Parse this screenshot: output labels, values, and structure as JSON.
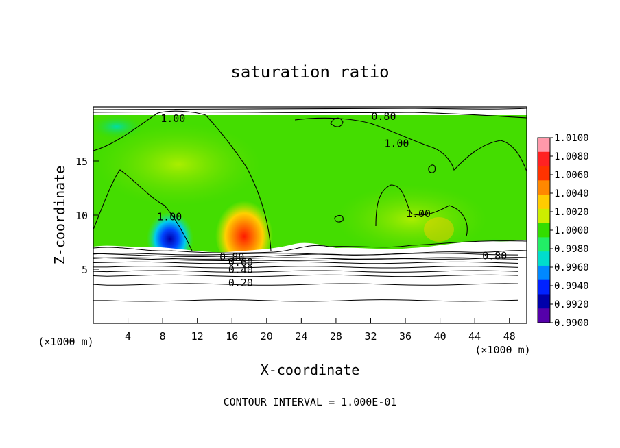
{
  "chart_data": {
    "type": "heatmap",
    "title": "saturation ratio",
    "xlabel": "X-coordinate",
    "ylabel": "Z-coordinate",
    "x_units_left": "(×1000 m)",
    "x_units_right": "(×1000 m)",
    "xlim": [
      0,
      50
    ],
    "ylim": [
      0,
      20
    ],
    "xticks": [
      4,
      8,
      12,
      16,
      20,
      24,
      28,
      32,
      36,
      40,
      44,
      48
    ],
    "yticks": [
      5,
      10,
      15
    ],
    "footer": "CONTOUR INTERVAL = 1.000E-01",
    "colorbar": {
      "min": 0.99,
      "max": 1.01,
      "labels": [
        "1.0100",
        "1.0080",
        "1.0060",
        "1.0040",
        "1.0020",
        "1.0000",
        "0.9980",
        "0.9960",
        "0.9940",
        "0.9920",
        "0.9900"
      ],
      "colors": [
        "#ff99aa",
        "#ff2222",
        "#ff3300",
        "#ff8800",
        "#ffcc00",
        "#ccee00",
        "#33dd00",
        "#22ee66",
        "#00ddcc",
        "#0088ff",
        "#0022ff",
        "#0000aa",
        "#5500aa"
      ]
    },
    "contour_labels": [
      {
        "text": "1.00",
        "x": 9.2,
        "z": 18.8
      },
      {
        "text": "0.80",
        "x": 33.5,
        "z": 19.0
      },
      {
        "text": "1.00",
        "x": 35.0,
        "z": 16.5
      },
      {
        "text": "1.00",
        "x": 37.5,
        "z": 10.0
      },
      {
        "text": "1.00",
        "x": 8.8,
        "z": 9.7
      },
      {
        "text": "0.80",
        "x": 16.0,
        "z": 6.0
      },
      {
        "text": "0.60",
        "x": 17.0,
        "z": 5.5
      },
      {
        "text": "0.40",
        "x": 17.0,
        "z": 4.8
      },
      {
        "text": "0.20",
        "x": 17.0,
        "z": 3.6
      },
      {
        "text": "0.80",
        "x": 46.3,
        "z": 6.1
      }
    ],
    "level_lines": [
      6.4,
      6.0,
      5.6,
      5.2,
      4.8,
      4.4,
      3.6,
      2.1
    ]
  }
}
